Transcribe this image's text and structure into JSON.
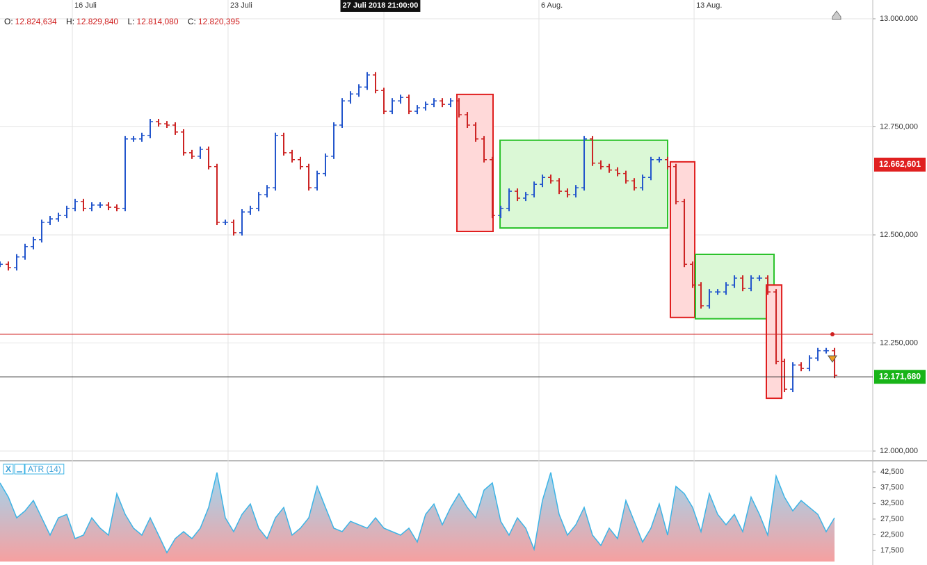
{
  "chart_data": [
    {
      "type": "stock",
      "ohlc_header": [
        {
          "label": "O:",
          "value": "12.824,634"
        },
        {
          "label": "H:",
          "value": "12.829,840"
        },
        {
          "label": "L:",
          "value": "12.814,080"
        },
        {
          "label": "C:",
          "value": "12.820,395"
        }
      ],
      "series": [
        {
          "name": "close",
          "up_color": "#2255cc",
          "down_color": "#cc2222",
          "values": [
            12432000,
            12424000,
            12449000,
            12473000,
            12489000,
            12529000,
            12537000,
            12545000,
            12561000,
            12577000,
            12561000,
            12569000,
            12569000,
            12564000,
            12561000,
            12722000,
            12722000,
            12730000,
            12762000,
            12757000,
            12754000,
            12738000,
            12690000,
            12682000,
            12698000,
            12658000,
            12529000,
            12529000,
            12505000,
            12553000,
            12561000,
            12593000,
            12609000,
            12730000,
            12690000,
            12674000,
            12658000,
            12609000,
            12642000,
            12682000,
            12754000,
            12810000,
            12826000,
            12842000,
            12870000,
            12834000,
            12786000,
            12810000,
            12818000,
            12786000,
            12794000,
            12802000,
            12810000,
            12802000,
            12810000,
            12778000,
            12754000,
            12722000,
            12674000,
            12545000,
            12561000,
            12601000,
            12585000,
            12593000,
            12617000,
            12633000,
            12625000,
            12601000,
            12593000,
            12609000,
            12722000,
            12666000,
            12658000,
            12650000,
            12642000,
            12625000,
            12609000,
            12633000,
            12674000,
            12674000,
            12658000,
            12577000,
            12432000,
            12384000,
            12336000,
            12368000,
            12368000,
            12384000,
            12400000,
            12376000,
            12400000,
            12400000,
            12368000,
            12207000,
            12143000,
            12199000,
            12191000,
            12215000,
            12232000,
            12232000,
            12175000
          ]
        }
      ],
      "xlim": [
        0,
        104.58
      ],
      "xticks": [
        {
          "value": 8.67,
          "label": "16 Juli"
        },
        {
          "value": 27.33,
          "label": "23 Juli"
        },
        {
          "value": 46.0,
          "label": ""
        },
        {
          "value": 64.58,
          "label": "6 Aug."
        },
        {
          "value": 83.17,
          "label": "13 Aug."
        }
      ],
      "crosshair": {
        "value": 45.58,
        "label": "27 Juli 2018 21:00:00"
      },
      "ylim": [
        11982300,
        13043400
      ],
      "yticks": [
        {
          "value": 13000000,
          "label": "13.000.000"
        },
        {
          "value": 12750000,
          "label": "12.750,000"
        },
        {
          "value": 12500000,
          "label": "12.500,000"
        },
        {
          "value": 12250000,
          "label": "12.250,000"
        },
        {
          "value": 12000000,
          "label": "12.000,000"
        }
      ],
      "grid": true,
      "zones": [
        {
          "x": [
            54.75,
            59.08
          ],
          "y": [
            12508000,
            12825000
          ],
          "color": "red"
        },
        {
          "x": [
            59.92,
            80.0
          ],
          "y": [
            12516000,
            12719000
          ],
          "color": "green"
        },
        {
          "x": [
            80.33,
            83.25
          ],
          "y": [
            12309000,
            12669000
          ],
          "color": "red"
        },
        {
          "x": [
            83.33,
            92.75
          ],
          "y": [
            12306000,
            12455000
          ],
          "color": "green"
        },
        {
          "x": [
            91.83,
            93.67
          ],
          "y": [
            12122000,
            12384000
          ],
          "color": "red"
        }
      ],
      "level_line": {
        "value": 12270000,
        "color": "#d02020"
      },
      "price_markers": [
        {
          "value": 12662601,
          "label": "12.662,601",
          "color": "#e02020",
          "line": false
        },
        {
          "value": 12171680,
          "label": "12.171,680",
          "color": "#18b418",
          "line": true
        }
      ]
    },
    {
      "type": "area",
      "legend": "ATR (14)",
      "control": "X",
      "series": [
        {
          "name": "ATR (14)",
          "color": "#3cb4e6",
          "values": [
            39000,
            34500,
            27900,
            30100,
            33400,
            27900,
            22400,
            27900,
            29000,
            21300,
            22400,
            27900,
            24600,
            22400,
            35600,
            29000,
            24600,
            22400,
            27900,
            22400,
            16800,
            21300,
            23500,
            21300,
            24600,
            31200,
            42300,
            27900,
            23500,
            29000,
            32300,
            24600,
            21300,
            27900,
            31200,
            22400,
            24600,
            27900,
            37900,
            31200,
            24600,
            23500,
            26800,
            25700,
            24600,
            27900,
            24600,
            23500,
            22400,
            24600,
            20200,
            29000,
            32300,
            25700,
            31200,
            35600,
            31200,
            27900,
            36700,
            39000,
            26800,
            22400,
            27900,
            24600,
            17900,
            33400,
            42300,
            29000,
            22400,
            25700,
            31200,
            22400,
            19100,
            24600,
            21300,
            33400,
            26800,
            20200,
            24600,
            32300,
            22400,
            37900,
            35600,
            31200,
            23500,
            35600,
            29000,
            25700,
            29000,
            23500,
            34500,
            29000,
            22400,
            41200,
            34500,
            30100,
            33400,
            31200,
            29000,
            23500,
            27900
          ]
        }
      ],
      "xlim": [
        0,
        104.58
      ],
      "ylim": [
        14000,
        45600
      ],
      "yticks": [
        {
          "value": 42500,
          "label": "42,500"
        },
        {
          "value": 37500,
          "label": "37,500"
        },
        {
          "value": 32500,
          "label": "32,500"
        },
        {
          "value": 27500,
          "label": "27,500"
        },
        {
          "value": 22500,
          "label": "22,500"
        },
        {
          "value": 17500,
          "label": "17,500"
        }
      ]
    }
  ]
}
